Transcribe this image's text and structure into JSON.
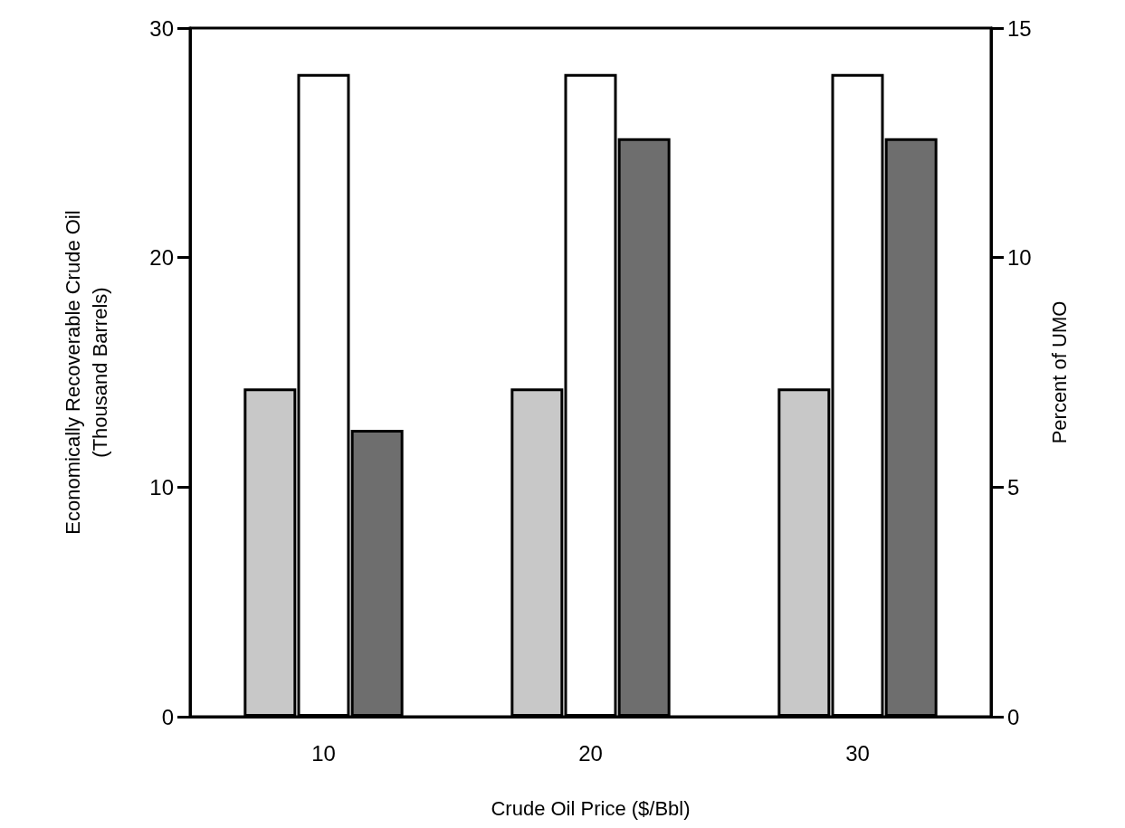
{
  "chart_data": {
    "type": "bar",
    "xlabel": "Crude Oil Price ($/Bbl)",
    "ylabel": "Economically Recoverable Crude Oil\n(Thousand Barrels)",
    "y2label": "Percent of UMO",
    "categories": [
      "10",
      "20",
      "30"
    ],
    "series": [
      {
        "color": "#c8c8c8",
        "values": [
          14.3,
          14.3,
          14.3
        ]
      },
      {
        "color": "#ffffff",
        "values": [
          28.0,
          28.0,
          28.0
        ]
      },
      {
        "color": "#6e6e6e",
        "values": [
          12.5,
          25.2,
          25.2
        ]
      }
    ],
    "ylim": [
      0,
      30
    ],
    "yticks": [
      0,
      10,
      20,
      30
    ],
    "y2lim": [
      0,
      15
    ],
    "y2ticks": [
      0,
      5,
      10,
      15
    ]
  }
}
